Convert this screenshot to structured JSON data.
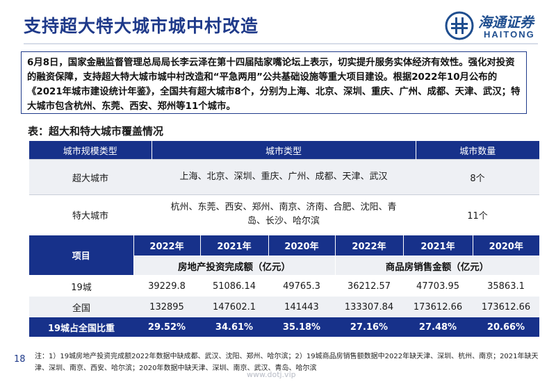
{
  "header": {
    "title": "支持超大特大城市城中村改造",
    "logo_cn": "海通证券",
    "logo_en": "HAITONG"
  },
  "intro": {
    "text": "6月8日，国家金融监督管理总局局长李云泽在第十四届陆家嘴论坛上表示，切实提升服务实体经济有效性。强化对投资的融资保障，支持超大特大城市城中村改造和“平急两用”公共基础设施等重大项目建设。根据2022年10月公布的《2021年城市建设统计年鉴》，全国共有超大城市8个，分别为上海、北京、深圳、重庆、广州、成都、天津、武汉；特大城市包含杭州、东莞、西安、郑州等11个城市。"
  },
  "section_title": "表：超大和特大城市覆盖情况",
  "table1": {
    "headers": [
      "城市规模类型",
      "城市类型",
      "城市数量"
    ],
    "rows": [
      {
        "type": "超大城市",
        "cities": "上海、北京、深圳、重庆、广州、成都、天津、武汉",
        "count": "8个"
      },
      {
        "type": "特大城市",
        "cities": "杭州、东莞、西安、郑州、南京、济南、合肥、沈阳、青岛、长沙、哈尔滨",
        "count": "11个"
      }
    ]
  },
  "table2": {
    "item_header": "项目",
    "years": [
      "2022年",
      "2021年",
      "2020年",
      "2022年",
      "2021年",
      "2020年"
    ],
    "group1": "房地产投资完成额（亿元）",
    "group2": "商品房销售金额（亿元）",
    "rows": [
      {
        "label": "19城",
        "values": [
          "39229.8",
          "51086.14",
          "49765.3",
          "36212.57",
          "47703.95",
          "35863.1"
        ]
      },
      {
        "label": "全国",
        "values": [
          "132895",
          "147602.1",
          "141443",
          "133307.84",
          "173612.66",
          "173612.66"
        ]
      },
      {
        "label": "19城占全国比重",
        "values": [
          "29.52%",
          "34.61%",
          "35.18%",
          "27.16%",
          "27.48%",
          "20.66%"
        ]
      }
    ]
  },
  "footer": {
    "note": "注：1）19城房地产投资完成额2022年数据中缺成都、武汉、沈阳、郑州、哈尔滨；2）19城商品房销售额数据中2022年缺天津、深圳、杭州、南京；2021年缺天津、深圳、南京、西安、哈尔滨；2020年数据中缺天津、深圳、南京、武汉、青岛、哈尔滨",
    "page": "18",
    "watermark": "www.dotj.vip"
  },
  "colors": {
    "primary": "#17318a",
    "band": "#eef0f4"
  }
}
